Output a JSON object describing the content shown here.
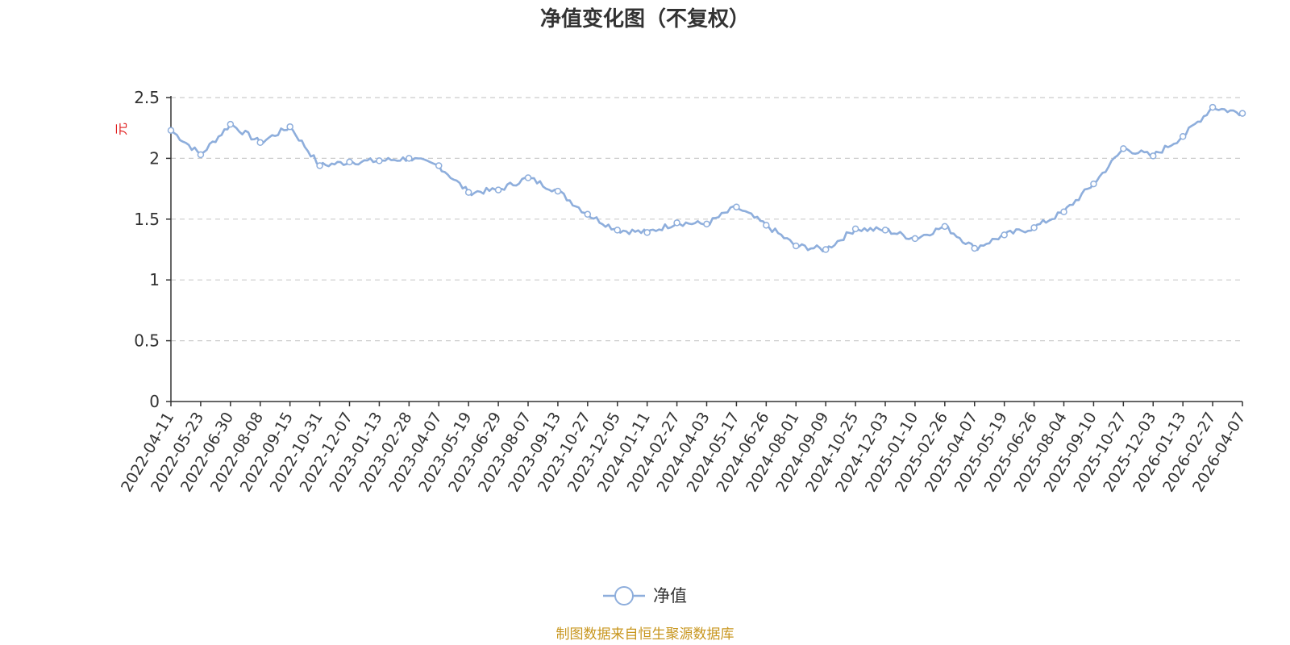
{
  "chart_data": {
    "type": "line",
    "title": "净值变化图（不复权）",
    "ylabel": "元",
    "ylim": [
      0,
      2.5
    ],
    "yticks": [
      "0",
      "0.5",
      "1",
      "1.5",
      "2",
      "2.5"
    ],
    "grid": true,
    "legend_position": "bottom-center",
    "categories": [
      "2022-04-11",
      "2022-05-23",
      "2022-06-30",
      "2022-08-08",
      "2022-09-15",
      "2022-10-31",
      "2022-12-07",
      "2023-01-13",
      "2023-02-28",
      "2023-04-07",
      "2023-05-19",
      "2023-06-29",
      "2023-08-07",
      "2023-09-13",
      "2023-10-27",
      "2023-12-05",
      "2024-01-11",
      "2024-02-27",
      "2024-04-03",
      "2024-05-17",
      "2024-06-26",
      "2024-08-01",
      "2024-09-09",
      "2024-10-25",
      "2024-12-03",
      "2025-01-10",
      "2025-02-26",
      "2025-04-07",
      "2025-05-19",
      "2025-06-26",
      "2025-08-04",
      "2025-09-10",
      "2025-10-27",
      "2025-12-03",
      "2026-01-13",
      "2026-02-27",
      "2026-04-07"
    ],
    "series": [
      {
        "name": "净值",
        "color": "#8eaedc",
        "values": [
          2.23,
          2.03,
          2.28,
          2.13,
          2.26,
          1.94,
          1.97,
          1.98,
          2.0,
          1.94,
          1.72,
          1.74,
          1.84,
          1.73,
          1.54,
          1.41,
          1.39,
          1.47,
          1.46,
          1.6,
          1.45,
          1.28,
          1.25,
          1.42,
          1.41,
          1.34,
          1.44,
          1.26,
          1.37,
          1.43,
          1.56,
          1.79,
          2.08,
          2.02,
          2.18,
          2.42,
          2.37
        ]
      }
    ],
    "source_text": "制图数据来自恒生聚源数据库",
    "source_color": "#c8961e",
    "ylabel_color": "#e02020"
  }
}
